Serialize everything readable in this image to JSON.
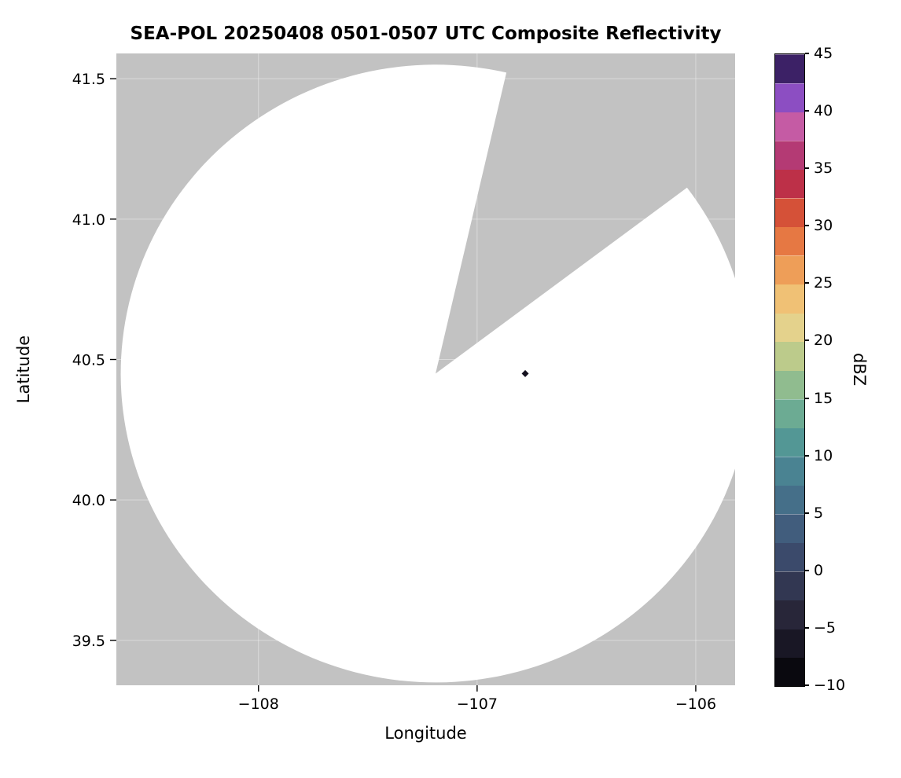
{
  "chart_data": {
    "type": "heatmap",
    "title": "SEA-POL 20250408 0501-0507 UTC Composite Reflectivity",
    "xlabel": "Longitude",
    "ylabel": "Latitude",
    "xlim": [
      -108.65,
      -105.82
    ],
    "ylim": [
      39.34,
      41.59
    ],
    "x_ticks": [
      {
        "value": -108,
        "label": "−108"
      },
      {
        "value": -107,
        "label": "−107"
      },
      {
        "value": -106,
        "label": "−106"
      }
    ],
    "y_ticks": [
      {
        "value": 41.5,
        "label": "41.5"
      },
      {
        "value": 41.0,
        "label": "41.0"
      },
      {
        "value": 40.5,
        "label": "40.5"
      },
      {
        "value": 40.0,
        "label": "40.0"
      },
      {
        "value": 39.5,
        "label": "39.5"
      }
    ],
    "grid": true,
    "gridline_color": "rgba(255,255,255,0.4)",
    "legend": false,
    "background_color": "#c2c2c2",
    "coverage": {
      "description": "white radar coverage disk with a gray no-data sector toward the NNE",
      "color": "#ffffff",
      "center_lon": -107.19,
      "center_lat": 40.45,
      "radius_deg_lon": 1.44,
      "radius_deg_lat": 1.1,
      "missing_sector_start_az_deg": 13,
      "missing_sector_end_az_deg": 53
    },
    "echoes": [
      {
        "lon": -106.78,
        "lat": 40.45,
        "color": "#14111f"
      }
    ],
    "colorbar": {
      "label": "dBZ",
      "min": -10,
      "max": 45,
      "ticks": [
        {
          "value": 45,
          "label": "45"
        },
        {
          "value": 40,
          "label": "40"
        },
        {
          "value": 35,
          "label": "35"
        },
        {
          "value": 30,
          "label": "30"
        },
        {
          "value": 25,
          "label": "25"
        },
        {
          "value": 20,
          "label": "20"
        },
        {
          "value": 15,
          "label": "15"
        },
        {
          "value": 10,
          "label": "10"
        },
        {
          "value": 5,
          "label": "5"
        },
        {
          "value": 0,
          "label": "0"
        },
        {
          "value": -5,
          "label": "−5"
        },
        {
          "value": -10,
          "label": "−10"
        }
      ],
      "segment_colors_bottom_to_top": [
        "#0a090f",
        "#191725",
        "#282639",
        "#323752",
        "#3b4a6b",
        "#415d7d",
        "#456f89",
        "#4a8392",
        "#539795",
        "#6cab93",
        "#90bc8f",
        "#bccb8b",
        "#e4d28c",
        "#f0c175",
        "#ee9e58",
        "#e67843",
        "#d55138",
        "#bd3048",
        "#b43a74",
        "#c55ba4",
        "#8c4ec2",
        "#3c2166"
      ]
    }
  }
}
